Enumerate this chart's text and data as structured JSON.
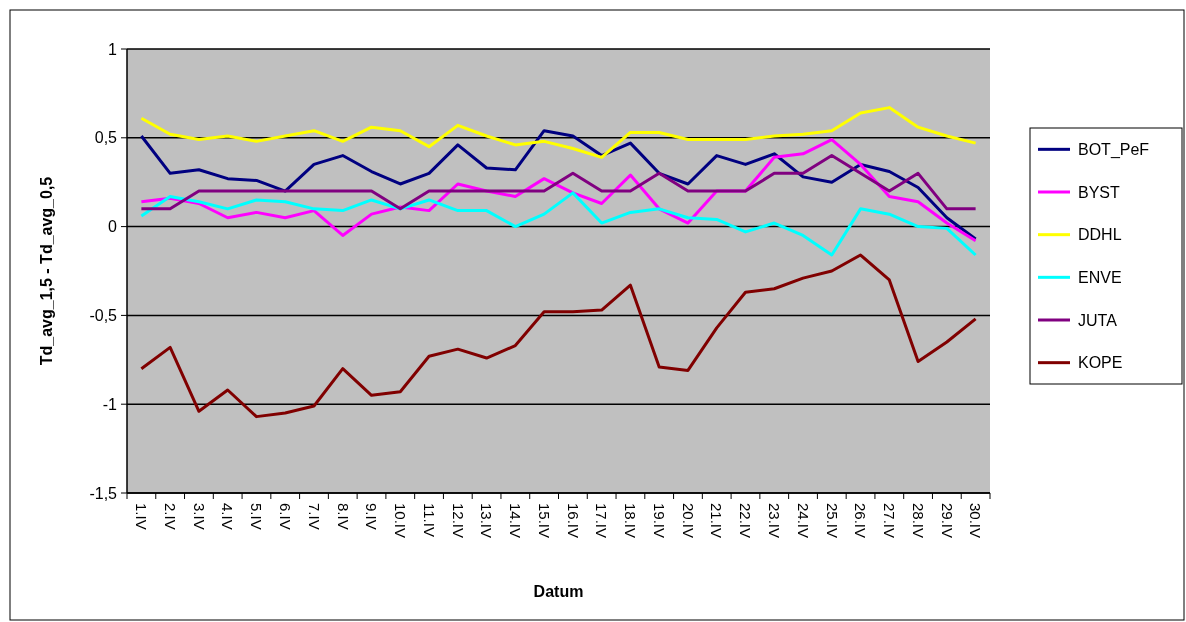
{
  "chart_data": {
    "type": "line",
    "xlabel": "Datum",
    "ylabel": "Td_avg_1,5 - Td_avg_0,5",
    "categories": [
      "1.IV",
      "2.IV",
      "3.IV",
      "4.IV",
      "5.IV",
      "6.IV",
      "7.IV",
      "8.IV",
      "9.IV",
      "10.IV",
      "11.IV",
      "12.IV",
      "13.IV",
      "14.IV",
      "15.IV",
      "16.IV",
      "17.IV",
      "18.IV",
      "19.IV",
      "20.IV",
      "21.IV",
      "22.IV",
      "23.IV",
      "24.IV",
      "25.IV",
      "26.IV",
      "27.IV",
      "28.IV",
      "29.IV",
      "30.IV"
    ],
    "series": [
      {
        "name": "BOT_PeF",
        "color": "#000080",
        "values": [
          0.51,
          0.3,
          0.32,
          0.27,
          0.26,
          0.2,
          0.35,
          0.4,
          0.31,
          0.24,
          0.3,
          0.46,
          0.33,
          0.32,
          0.54,
          0.51,
          0.4,
          0.47,
          0.3,
          0.24,
          0.4,
          0.35,
          0.41,
          0.28,
          0.25,
          0.35,
          0.31,
          0.22,
          0.05,
          -0.07
        ]
      },
      {
        "name": "BYST",
        "color": "#ff00ff",
        "values": [
          0.14,
          0.16,
          0.13,
          0.05,
          0.08,
          0.05,
          0.09,
          -0.05,
          0.07,
          0.11,
          0.09,
          0.24,
          0.2,
          0.17,
          0.27,
          0.19,
          0.13,
          0.29,
          0.1,
          0.02,
          0.2,
          0.2,
          0.39,
          0.41,
          0.49,
          0.35,
          0.17,
          0.14,
          0.02,
          -0.08
        ]
      },
      {
        "name": "DDHL",
        "color": "#ffff00",
        "values": [
          0.61,
          0.52,
          0.49,
          0.51,
          0.48,
          0.51,
          0.54,
          0.48,
          0.56,
          0.54,
          0.45,
          0.57,
          0.51,
          0.46,
          0.48,
          0.44,
          0.39,
          0.53,
          0.53,
          0.49,
          0.49,
          0.49,
          0.51,
          0.52,
          0.54,
          0.64,
          0.67,
          0.56,
          0.51,
          0.47
        ]
      },
      {
        "name": "ENVE",
        "color": "#00ffff",
        "values": [
          0.06,
          0.17,
          0.14,
          0.1,
          0.15,
          0.14,
          0.1,
          0.09,
          0.15,
          0.1,
          0.15,
          0.09,
          0.09,
          0.0,
          0.07,
          0.19,
          0.02,
          0.08,
          0.1,
          0.05,
          0.04,
          -0.03,
          0.02,
          -0.05,
          -0.16,
          0.1,
          0.07,
          0.0,
          -0.01,
          -0.16
        ]
      },
      {
        "name": "JUTA",
        "color": "#800080",
        "values": [
          0.1,
          0.1,
          0.2,
          0.2,
          0.2,
          0.2,
          0.2,
          0.2,
          0.2,
          0.1,
          0.2,
          0.2,
          0.2,
          0.2,
          0.2,
          0.3,
          0.2,
          0.2,
          0.3,
          0.2,
          0.2,
          0.2,
          0.3,
          0.3,
          0.4,
          0.3,
          0.2,
          0.3,
          0.1,
          0.1
        ]
      },
      {
        "name": "KOPE",
        "color": "#800000",
        "values": [
          -0.8,
          -0.68,
          -1.04,
          -0.92,
          -1.07,
          -1.05,
          -1.01,
          -0.8,
          -0.95,
          -0.93,
          -0.73,
          -0.69,
          -0.74,
          -0.67,
          -0.48,
          -0.48,
          -0.47,
          -0.33,
          -0.79,
          -0.81,
          -0.57,
          -0.37,
          -0.35,
          -0.29,
          -0.25,
          -0.16,
          -0.3,
          -0.76,
          -0.65,
          -0.52
        ]
      }
    ],
    "ylim": [
      -1.5,
      1
    ],
    "yticks": [
      {
        "value": -1.5,
        "label": "-1,5"
      },
      -1,
      {
        "value": -0.5,
        "label": "-0,5"
      },
      0,
      {
        "value": 0.5,
        "label": "0,5"
      },
      1
    ],
    "grid": "y",
    "legend": "right",
    "marker": "none",
    "line_style": "solid"
  }
}
